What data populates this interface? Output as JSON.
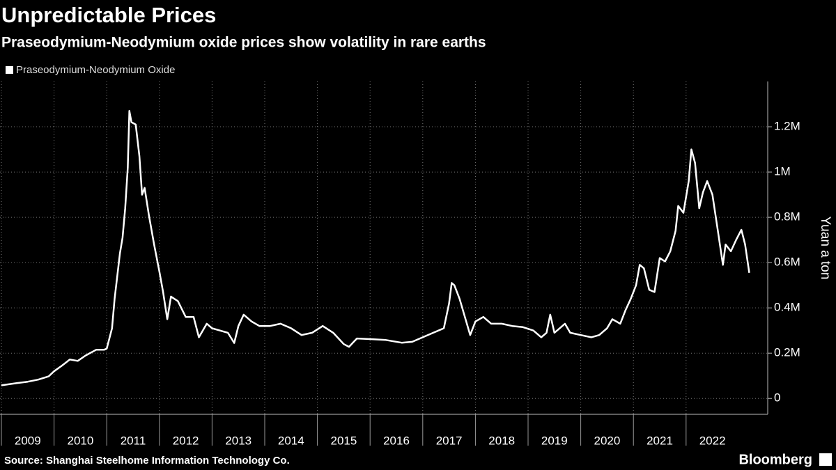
{
  "chart_data": {
    "type": "line",
    "title": "Unpredictable Prices",
    "subtitle": "Praseodymium-Neodymium oxide prices show volatility in rare earths",
    "y_axis_label": "Yuan a ton",
    "source": "Source: Shanghai Steelhome Information Technology Co.",
    "brand": "Bloomberg",
    "legend": "top-left",
    "grid": true,
    "y_axis_side": "right",
    "background": "#000000",
    "xlim": [
      2009,
      2023.55
    ],
    "xticks": [
      2009,
      2010,
      2011,
      2012,
      2013,
      2014,
      2015,
      2016,
      2017,
      2018,
      2019,
      2020,
      2021,
      2022
    ],
    "ylim": [
      -70000,
      1400000
    ],
    "yticks": [
      0,
      {
        "value": 200000,
        "label": "0.2M"
      },
      {
        "value": 400000,
        "label": "0.4M"
      },
      {
        "value": 600000,
        "label": "0.6M"
      },
      {
        "value": 800000,
        "label": "0.8M"
      },
      {
        "value": 1000000,
        "label": "1M"
      },
      {
        "value": 1200000,
        "label": "1.2M"
      }
    ],
    "x": [
      2009.0,
      2009.3,
      2009.5,
      2009.7,
      2009.9,
      2010.0,
      2010.15,
      2010.3,
      2010.45,
      2010.6,
      2010.8,
      2010.95,
      2011.0,
      2011.1,
      2011.15,
      2011.25,
      2011.3,
      2011.35,
      2011.4,
      2011.43,
      2011.47,
      2011.55,
      2011.62,
      2011.67,
      2011.72,
      2011.8,
      2011.9,
      2012.0,
      2012.07,
      2012.15,
      2012.22,
      2012.35,
      2012.5,
      2012.65,
      2012.75,
      2012.9,
      2013.0,
      2013.15,
      2013.3,
      2013.42,
      2013.5,
      2013.6,
      2013.75,
      2013.9,
      2014.1,
      2014.3,
      2014.5,
      2014.7,
      2014.9,
      2015.1,
      2015.3,
      2015.5,
      2015.6,
      2015.75,
      2016.0,
      2016.3,
      2016.6,
      2016.8,
      2017.0,
      2017.2,
      2017.4,
      2017.5,
      2017.55,
      2017.6,
      2017.7,
      2017.8,
      2017.9,
      2018.0,
      2018.15,
      2018.3,
      2018.5,
      2018.7,
      2018.9,
      2019.1,
      2019.25,
      2019.35,
      2019.42,
      2019.5,
      2019.6,
      2019.7,
      2019.8,
      2020.0,
      2020.2,
      2020.35,
      2020.5,
      2020.6,
      2020.75,
      2020.85,
      2020.95,
      2021.05,
      2021.12,
      2021.2,
      2021.3,
      2021.4,
      2021.5,
      2021.6,
      2021.7,
      2021.8,
      2021.85,
      2021.95,
      2022.05,
      2022.1,
      2022.17,
      2022.25,
      2022.32,
      2022.4,
      2022.5,
      2022.6,
      2022.7,
      2022.75,
      2022.85,
      2022.95,
      2023.05,
      2023.12,
      2023.2
    ],
    "series": [
      {
        "name": "Praseodymium-Neodymium Oxide",
        "color": "#ffffff",
        "values": [
          58000,
          68000,
          74000,
          83000,
          98000,
          120000,
          145000,
          172000,
          166000,
          190000,
          215000,
          215000,
          220000,
          310000,
          440000,
          640000,
          710000,
          840000,
          1020000,
          1270000,
          1220000,
          1210000,
          1070000,
          900000,
          930000,
          810000,
          680000,
          560000,
          470000,
          350000,
          450000,
          430000,
          360000,
          360000,
          270000,
          330000,
          310000,
          300000,
          290000,
          245000,
          320000,
          370000,
          340000,
          320000,
          320000,
          330000,
          310000,
          280000,
          290000,
          320000,
          290000,
          240000,
          228000,
          265000,
          262000,
          258000,
          246000,
          250000,
          270000,
          290000,
          310000,
          420000,
          510000,
          500000,
          440000,
          360000,
          280000,
          340000,
          360000,
          330000,
          330000,
          320000,
          315000,
          300000,
          270000,
          290000,
          370000,
          290000,
          310000,
          330000,
          290000,
          280000,
          270000,
          280000,
          310000,
          350000,
          330000,
          390000,
          440000,
          500000,
          590000,
          575000,
          480000,
          470000,
          620000,
          605000,
          650000,
          740000,
          850000,
          820000,
          960000,
          1100000,
          1040000,
          840000,
          910000,
          960000,
          900000,
          745000,
          590000,
          680000,
          650000,
          700000,
          745000,
          680000,
          555000
        ]
      }
    ]
  }
}
